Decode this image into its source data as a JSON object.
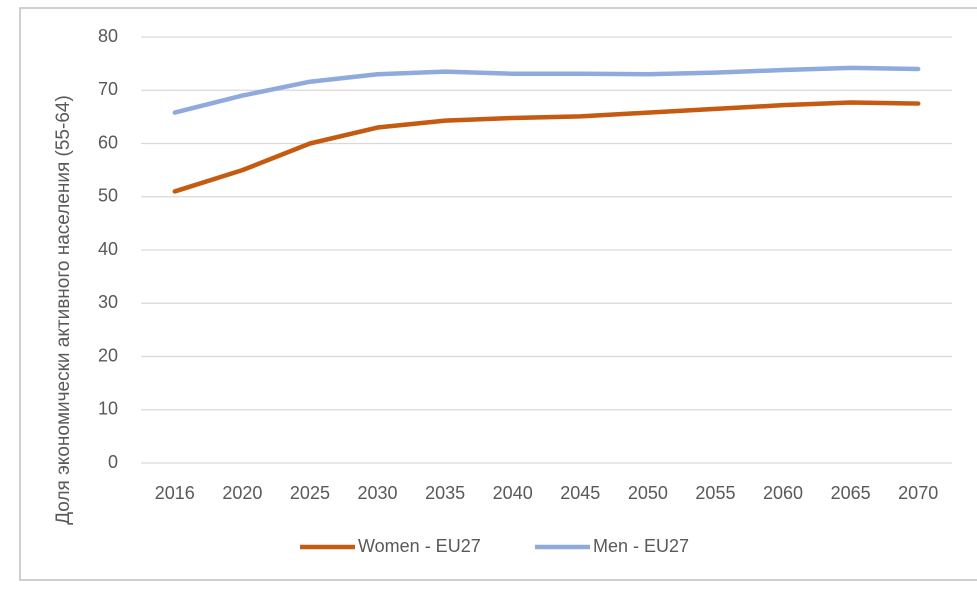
{
  "chart_data": {
    "type": "line",
    "y_label": "Доля экономически активного населения (55-64)",
    "categories": [
      "2016",
      "2020",
      "2025",
      "2030",
      "2035",
      "2040",
      "2045",
      "2050",
      "2055",
      "2060",
      "2065",
      "2070"
    ],
    "series": [
      {
        "name": "Women - EU27",
        "color": "#c55a11",
        "values": [
          51,
          55,
          60,
          63,
          64.3,
          64.8,
          65.1,
          65.8,
          66.5,
          67.2,
          67.7,
          67.5
        ]
      },
      {
        "name": "Men - EU27",
        "color": "#8faadc",
        "values": [
          65.8,
          69,
          71.6,
          73,
          73.5,
          73.1,
          73.1,
          73,
          73.3,
          73.8,
          74.2,
          74
        ]
      }
    ],
    "ylim": [
      0,
      80
    ],
    "yticks": [
      0,
      10,
      20,
      30,
      40,
      50,
      60,
      70,
      80
    ],
    "grid": true,
    "legend": "bottom"
  }
}
